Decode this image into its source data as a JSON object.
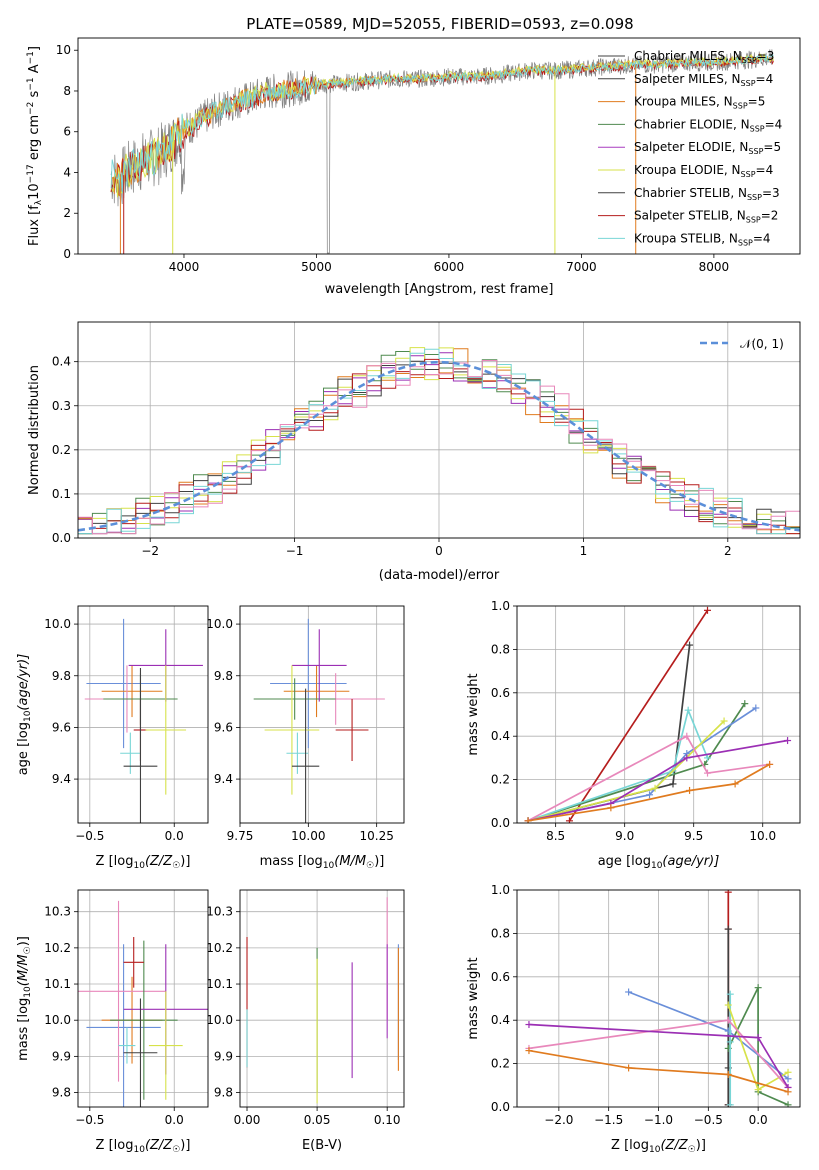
{
  "title": "PLATE=0589, MJD=52055, FIBERID=0593, z=0.098",
  "colors": [
    "#5b5b5b",
    "#9b2fb4",
    "#e07b1f",
    "#4f8a4f",
    "#a83dbf",
    "#d7e24a",
    "#404040",
    "#b51d1d",
    "#78d6d6",
    "#6a8fd9",
    "#e888bb"
  ],
  "chart_data": [
    {
      "type": "line",
      "panel": "spectrum",
      "title": "PLATE=0589, MJD=52055, FIBERID=0593, z=0.098",
      "xlabel": "wavelength [Angstrom, rest frame]",
      "ylabel": "Flux [f",
      "ylabel_sub": "λ",
      "ylabel_rest": "10",
      "ylabel_exp": "−17",
      "ylabel_units": " erg cm",
      "ylabel_exp2": "−2",
      "ylabel_s": " s",
      "ylabel_exp3": "−1",
      "ylabel_end": " A",
      "ylabel_exp4": "−1",
      "ylabel_close": "]",
      "xlim": [
        3200,
        8650
      ],
      "ylim": [
        0,
        10.6
      ],
      "xticks": [
        "4000",
        "5000",
        "6000",
        "7000",
        "8000"
      ],
      "yticks": [
        "0",
        "2",
        "4",
        "6",
        "8",
        "10"
      ],
      "x": [
        3450,
        3500,
        3600,
        3700,
        3800,
        3900,
        4000,
        4100,
        4200,
        4300,
        4400,
        4500,
        4600,
        4700,
        4800,
        4900,
        5000,
        5200,
        5400,
        5600,
        5800,
        6000,
        6200,
        6400,
        6600,
        6800,
        7000,
        7200,
        7400,
        7600,
        7800,
        8000,
        8200,
        8400
      ],
      "y": [
        3.9,
        3.6,
        4.2,
        4.6,
        4.8,
        5.4,
        6.1,
        6.4,
        6.9,
        7.2,
        7.5,
        7.6,
        7.9,
        8.0,
        8.1,
        8.2,
        8.3,
        8.4,
        8.5,
        8.6,
        8.6,
        8.7,
        8.7,
        8.8,
        9.0,
        9.0,
        9.1,
        9.2,
        9.3,
        9.3,
        9.4,
        9.4,
        9.5,
        9.6
      ],
      "legend": [
        {
          "label": "Chabrier MILES, N",
          "sub": "SSP",
          "val": "=3",
          "color": "#404040"
        },
        {
          "label": "Salpeter MILES, N",
          "sub": "SSP",
          "val": "=4",
          "color": "#404040"
        },
        {
          "label": "Kroupa MILES, N",
          "sub": "SSP",
          "val": "=5",
          "color": "#e07b1f"
        },
        {
          "label": "Chabrier ELODIE, N",
          "sub": "SSP",
          "val": "=4",
          "color": "#4f8a4f"
        },
        {
          "label": "Salpeter ELODIE, N",
          "sub": "SSP",
          "val": "=5",
          "color": "#a83dbf"
        },
        {
          "label": "Kroupa ELODIE, N",
          "sub": "SSP",
          "val": "=4",
          "color": "#d7e24a"
        },
        {
          "label": "Chabrier STELIB, N",
          "sub": "SSP",
          "val": "=3",
          "color": "#404040"
        },
        {
          "label": "Salpeter STELIB, N",
          "sub": "SSP",
          "val": "=2",
          "color": "#b51d1d"
        },
        {
          "label": "Kroupa STELIB, N",
          "sub": "SSP",
          "val": "=4",
          "color": "#78d6d6"
        }
      ]
    },
    {
      "type": "histogram",
      "panel": "residuals",
      "xlabel": "(data-model)/error",
      "ylabel": "Normed distribution",
      "xlim": [
        -2.5,
        2.5
      ],
      "ylim": [
        0,
        0.49
      ],
      "xticks": [
        "−2",
        "−1",
        "0",
        "1",
        "2"
      ],
      "yticks": [
        "0.0",
        "0.1",
        "0.2",
        "0.3",
        "0.4"
      ],
      "legend": "𝒩(0, 1)",
      "gaussian": {
        "mu": 0,
        "sigma": 1,
        "color": "#5b8fd9"
      }
    },
    {
      "type": "scatter",
      "panel": "age_vs_Z",
      "xlabel": "Z [log",
      "xlabel_sub": "10",
      "xlabel_rest": "(Z/Z",
      "xlabel_end": ")]",
      "ylabel": "age  [log",
      "ylabel_sub": "10",
      "ylabel_rest": "(age/yr)]",
      "xlim": [
        -0.57,
        0.2
      ],
      "ylim": [
        9.23,
        10.07
      ],
      "xticks": [
        "−0.5",
        "0.0"
      ],
      "yticks": [
        "9.4",
        "9.6",
        "9.8",
        "10.0"
      ],
      "points": [
        {
          "x": -0.3,
          "y": 9.77,
          "xerr": 0.22,
          "yerr": 0.25,
          "color": "#6a8fd9"
        },
        {
          "x": -0.25,
          "y": 9.74,
          "xerr": 0.18,
          "yerr": 0.1,
          "color": "#e07b1f"
        },
        {
          "x": -0.28,
          "y": 9.71,
          "xerr": 0.25,
          "yerr": 0.13,
          "color": "#e888bb"
        },
        {
          "x": -0.2,
          "y": 9.71,
          "xerr": 0.22,
          "yerr": 0.1,
          "color": "#4f8a4f"
        },
        {
          "x": -0.05,
          "y": 9.84,
          "xerr": 0.22,
          "yerr": 0.14,
          "color": "#9b2fb4"
        },
        {
          "x": -0.2,
          "y": 9.59,
          "xerr": 0.04,
          "yerr": 0.12,
          "color": "#b51d1d"
        },
        {
          "x": -0.05,
          "y": 9.59,
          "xerr": 0.12,
          "yerr": 0.25,
          "color": "#d7e24a"
        },
        {
          "x": -0.26,
          "y": 9.5,
          "xerr": 0.06,
          "yerr": 0.08,
          "color": "#78d6d6"
        },
        {
          "x": -0.2,
          "y": 9.45,
          "xerr": 0.1,
          "yerr": 0.38,
          "color": "#404040"
        }
      ]
    },
    {
      "type": "scatter",
      "panel": "age_vs_mass",
      "xlabel": "mass [log",
      "xlabel_sub": "10",
      "xlabel_rest": "(M/M",
      "xlabel_end": ")]",
      "xlim": [
        9.75,
        10.35
      ],
      "ylim": [
        9.23,
        10.07
      ],
      "xticks": [
        "9.75",
        "10.00",
        "10.25"
      ],
      "yticks": [
        "9.4",
        "9.6",
        "9.8",
        "10.0"
      ],
      "points": [
        {
          "x": 10.0,
          "y": 9.77,
          "xerr": 0.14,
          "yerr": 0.25,
          "color": "#6a8fd9"
        },
        {
          "x": 10.03,
          "y": 9.74,
          "xerr": 0.12,
          "yerr": 0.1,
          "color": "#e07b1f"
        },
        {
          "x": 10.1,
          "y": 9.71,
          "xerr": 0.18,
          "yerr": 0.1,
          "color": "#e888bb"
        },
        {
          "x": 9.95,
          "y": 9.71,
          "xerr": 0.15,
          "yerr": 0.08,
          "color": "#4f8a4f"
        },
        {
          "x": 10.04,
          "y": 9.84,
          "xerr": 0.1,
          "yerr": 0.14,
          "color": "#9b2fb4"
        },
        {
          "x": 10.16,
          "y": 9.59,
          "xerr": 0.06,
          "yerr": 0.12,
          "color": "#b51d1d"
        },
        {
          "x": 9.94,
          "y": 9.59,
          "xerr": 0.1,
          "yerr": 0.25,
          "color": "#d7e24a"
        },
        {
          "x": 9.96,
          "y": 9.5,
          "xerr": 0.04,
          "yerr": 0.08,
          "color": "#78d6d6"
        },
        {
          "x": 9.99,
          "y": 9.45,
          "xerr": 0.05,
          "yerr": 0.3,
          "color": "#404040"
        }
      ]
    },
    {
      "type": "line",
      "panel": "weight_vs_age",
      "xlabel": "age  [log",
      "xlabel_sub": "10",
      "xlabel_rest": "(age/yr)]",
      "ylabel": "mass weight",
      "xlim": [
        8.22,
        10.27
      ],
      "ylim": [
        0,
        1.0
      ],
      "xticks": [
        "8.5",
        "9.0",
        "9.5",
        "10.0"
      ],
      "yticks": [
        "0.0",
        "0.2",
        "0.4",
        "0.6",
        "0.8",
        "1.0"
      ],
      "series": [
        {
          "color": "#b51d1d",
          "x": [
            8.6,
            9.6
          ],
          "y": [
            0.01,
            0.98
          ]
        },
        {
          "color": "#404040",
          "x": [
            8.3,
            9.35,
            9.47
          ],
          "y": [
            0.01,
            0.18,
            0.82
          ]
        },
        {
          "color": "#4f8a4f",
          "x": [
            8.3,
            9.58,
            9.87
          ],
          "y": [
            0.01,
            0.27,
            0.55
          ]
        },
        {
          "color": "#6a8fd9",
          "x": [
            8.3,
            9.18,
            9.45,
            9.95
          ],
          "y": [
            0.01,
            0.13,
            0.32,
            0.53
          ]
        },
        {
          "color": "#78d6d6",
          "x": [
            8.3,
            9.35,
            9.46,
            9.6
          ],
          "y": [
            0.01,
            0.24,
            0.52,
            0.3
          ]
        },
        {
          "color": "#d7e24a",
          "x": [
            8.3,
            9.22,
            9.72
          ],
          "y": [
            0.01,
            0.16,
            0.47
          ]
        },
        {
          "color": "#e888bb",
          "x": [
            8.3,
            9.45,
            9.6,
            10.05
          ],
          "y": [
            0.01,
            0.4,
            0.23,
            0.27
          ]
        },
        {
          "color": "#9b2fb4",
          "x": [
            8.3,
            8.9,
            9.45,
            10.18
          ],
          "y": [
            0.01,
            0.09,
            0.3,
            0.38
          ]
        },
        {
          "color": "#e07b1f",
          "x": [
            8.3,
            8.9,
            9.47,
            9.8,
            10.05
          ],
          "y": [
            0.01,
            0.07,
            0.15,
            0.18,
            0.27
          ]
        }
      ]
    },
    {
      "type": "scatter",
      "panel": "mass_vs_Z",
      "xlabel": "Z [log",
      "xlabel_sub": "10",
      "xlabel_rest": "(Z/Z",
      "xlabel_end": ")]",
      "ylabel": "mass [log",
      "ylabel_sub": "10",
      "ylabel_rest": "(M/M",
      "ylabel_end": ")]",
      "xlim": [
        -0.57,
        0.2
      ],
      "ylim": [
        9.76,
        10.36
      ],
      "xticks": [
        "−0.5",
        "0.0"
      ],
      "yticks": [
        "9.8",
        "9.9",
        "10.0",
        "10.1",
        "10.2",
        "10.3"
      ],
      "points": [
        {
          "x": -0.3,
          "y": 9.98,
          "xerr": 0.22,
          "yerr": 0.23,
          "color": "#6a8fd9"
        },
        {
          "x": -0.25,
          "y": 10.0,
          "xerr": 0.18,
          "yerr": 0.12,
          "color": "#e07b1f"
        },
        {
          "x": -0.33,
          "y": 10.08,
          "xerr": 0.28,
          "yerr": 0.25,
          "color": "#e888bb"
        },
        {
          "x": -0.18,
          "y": 10.0,
          "xerr": 0.2,
          "yerr": 0.22,
          "color": "#4f8a4f"
        },
        {
          "x": -0.05,
          "y": 10.03,
          "xerr": 0.25,
          "yerr": 0.18,
          "color": "#9b2fb4"
        },
        {
          "x": -0.24,
          "y": 10.16,
          "xerr": 0.06,
          "yerr": 0.07,
          "color": "#b51d1d"
        },
        {
          "x": -0.05,
          "y": 9.93,
          "xerr": 0.1,
          "yerr": 0.15,
          "color": "#d7e24a"
        },
        {
          "x": -0.28,
          "y": 9.93,
          "xerr": 0.05,
          "yerr": 0.05,
          "color": "#78d6d6"
        },
        {
          "x": -0.2,
          "y": 9.91,
          "xerr": 0.1,
          "yerr": 0.15,
          "color": "#404040"
        }
      ]
    },
    {
      "type": "scatter",
      "panel": "mass_vs_EBV",
      "xlabel": "E(B-V)",
      "xlim": [
        -0.005,
        0.112
      ],
      "ylim": [
        9.76,
        10.36
      ],
      "xticks": [
        "0.00",
        "0.05",
        "0.10"
      ],
      "yticks": [
        "9.8",
        "9.9",
        "10.0",
        "10.1",
        "10.2",
        "10.3"
      ],
      "points": [
        {
          "x": 0.0,
          "y": 10.05,
          "yerr": 0.18,
          "color": "#b51d1d"
        },
        {
          "x": 0.0,
          "y": 9.95,
          "yerr": 0.08,
          "color": "#78d6d6"
        },
        {
          "x": 0.05,
          "y": 10.0,
          "yerr": 0.2,
          "color": "#4f8a4f"
        },
        {
          "x": 0.05,
          "y": 9.97,
          "yerr": 0.2,
          "color": "#d7e24a"
        },
        {
          "x": 0.075,
          "y": 10.0,
          "yerr": 0.16,
          "color": "#9b2fb4"
        },
        {
          "x": 0.1,
          "y": 10.17,
          "yerr": 0.17,
          "color": "#e888bb"
        },
        {
          "x": 0.1,
          "y": 10.08,
          "yerr": 0.13,
          "color": "#a83dbf"
        },
        {
          "x": 0.108,
          "y": 10.05,
          "yerr": 0.16,
          "color": "#6a8fd9"
        },
        {
          "x": 0.108,
          "y": 10.03,
          "yerr": 0.17,
          "color": "#e07b1f"
        }
      ]
    },
    {
      "type": "line",
      "panel": "weight_vs_Z",
      "xlabel": "Z [log",
      "xlabel_sub": "10",
      "xlabel_rest": "(Z/Z",
      "xlabel_end": ")]",
      "ylabel": "mass weight",
      "xlim": [
        -2.42,
        0.42
      ],
      "ylim": [
        0,
        1.0
      ],
      "xticks": [
        "−2.0",
        "−1.5",
        "−1.0",
        "−0.5",
        "0.0"
      ],
      "yticks": [
        "0.0",
        "0.2",
        "0.4",
        "0.6",
        "0.8",
        "1.0"
      ],
      "series": [
        {
          "color": "#b51d1d",
          "x": [
            -0.3,
            -0.3,
            -0.3
          ],
          "y": [
            0.99,
            0.82,
            0.01
          ]
        },
        {
          "color": "#404040",
          "x": [
            -0.3,
            -0.3,
            -0.3
          ],
          "y": [
            0.82,
            0.18,
            0.01
          ]
        },
        {
          "color": "#4f8a4f",
          "x": [
            -0.3,
            0.0,
            0.0,
            0.3
          ],
          "y": [
            0.27,
            0.55,
            0.07,
            0.01
          ]
        },
        {
          "color": "#6a8fd9",
          "x": [
            -1.3,
            -0.3,
            0.3
          ],
          "y": [
            0.53,
            0.35,
            0.13
          ]
        },
        {
          "color": "#78d6d6",
          "x": [
            -0.28,
            -0.28,
            -0.28
          ],
          "y": [
            0.52,
            0.3,
            0.01
          ]
        },
        {
          "color": "#d7e24a",
          "x": [
            -0.3,
            0.0,
            0.3
          ],
          "y": [
            0.47,
            0.08,
            0.16
          ]
        },
        {
          "color": "#e888bb",
          "x": [
            -2.3,
            -0.3,
            0.3
          ],
          "y": [
            0.27,
            0.4,
            0.09
          ]
        },
        {
          "color": "#9b2fb4",
          "x": [
            -2.3,
            0.0,
            0.3
          ],
          "y": [
            0.38,
            0.32,
            0.09
          ]
        },
        {
          "color": "#e07b1f",
          "x": [
            -2.3,
            -1.3,
            -0.3,
            0.3
          ],
          "y": [
            0.26,
            0.18,
            0.15,
            0.07
          ]
        }
      ]
    }
  ]
}
